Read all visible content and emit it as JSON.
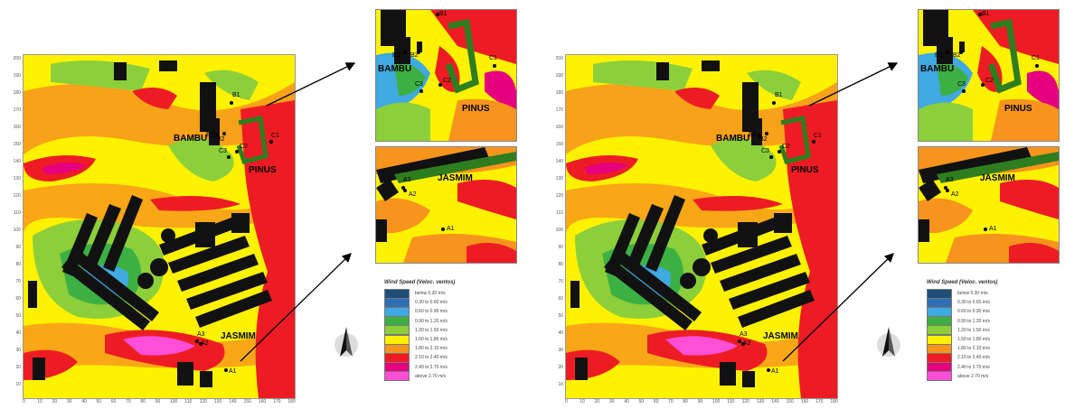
{
  "legend": {
    "title": "Wind Speed (Veloc. ventos)",
    "items": [
      {
        "label": "below 0.30 m/s",
        "color": "#1f4e79"
      },
      {
        "label": "0.30 to 0.60 m/s",
        "color": "#2e6fb5"
      },
      {
        "label": "0.60 to 0.90 m/s",
        "color": "#3fa9e0"
      },
      {
        "label": "0.90 to 1.20 m/s",
        "color": "#3cb043"
      },
      {
        "label": "1.20 to 1.50 m/s",
        "color": "#8ccf3a"
      },
      {
        "label": "1.50 to 1.80 m/s",
        "color": "#fff200"
      },
      {
        "label": "1.80 to 2.10 m/s",
        "color": "#f7941d"
      },
      {
        "label": "2.10 to 2.40 m/s",
        "color": "#ed1c24"
      },
      {
        "label": "2.40 to 2.70 m/s",
        "color": "#e6007e"
      },
      {
        "label": "above 2.70 m/s",
        "color": "#ff4fd8"
      }
    ]
  },
  "labels": {
    "bambu": "BAMBU",
    "pinus": "PINUS",
    "jasmim": "JASMIM",
    "points": {
      "a1": "A1",
      "a2": "A2",
      "a3": "A3",
      "b1": "B1",
      "b2": "B2",
      "b3": "B3",
      "c1": "C1",
      "c2": "C2",
      "c3": "C3"
    }
  },
  "axis": {
    "y_ticks": [
      "200",
      "190",
      "180",
      "170",
      "160",
      "150",
      "140",
      "130",
      "120",
      "110",
      "100",
      "90",
      "80",
      "70",
      "60",
      "50",
      "40",
      "30",
      "20",
      "10"
    ],
    "x_ticks": [
      "0",
      "10",
      "20",
      "30",
      "40",
      "50",
      "60",
      "70",
      "80",
      "90",
      "100",
      "110",
      "120",
      "130",
      "140",
      "150",
      "160",
      "170",
      "180"
    ]
  },
  "colors": {
    "building": "#111111",
    "vegetation_outline": "#2e7d1f",
    "arrow": "#000000"
  }
}
